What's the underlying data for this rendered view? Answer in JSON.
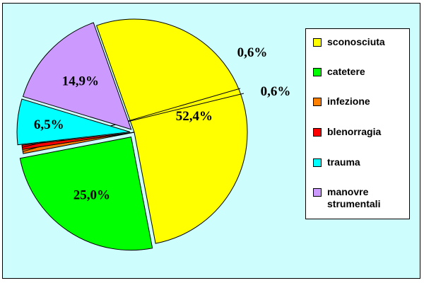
{
  "chart_data": {
    "type": "pie",
    "slices": [
      {
        "label": "sconosciuta",
        "value": 52.4,
        "value_label": "52,4%",
        "color": "#ffff00"
      },
      {
        "label": "catetere",
        "value": 25.0,
        "value_label": "25,0%",
        "color": "#00ff00"
      },
      {
        "label": "infezione",
        "value": 0.6,
        "value_label": "0,6%",
        "color": "#ff8000"
      },
      {
        "label": "blenorragia",
        "value": 0.6,
        "value_label": "0,6%",
        "color": "#ff0000"
      },
      {
        "label": "trauma",
        "value": 6.5,
        "value_label": "6,5%",
        "color": "#00ffff"
      },
      {
        "label": "manovre\nstrumentali",
        "value": 14.9,
        "value_label": "14,9%",
        "color": "#cc99ff"
      }
    ],
    "legend": {
      "position": "right"
    },
    "exploded": true
  },
  "colors": {
    "background": "#cdfdfd",
    "legend_background": "#ffffff"
  }
}
